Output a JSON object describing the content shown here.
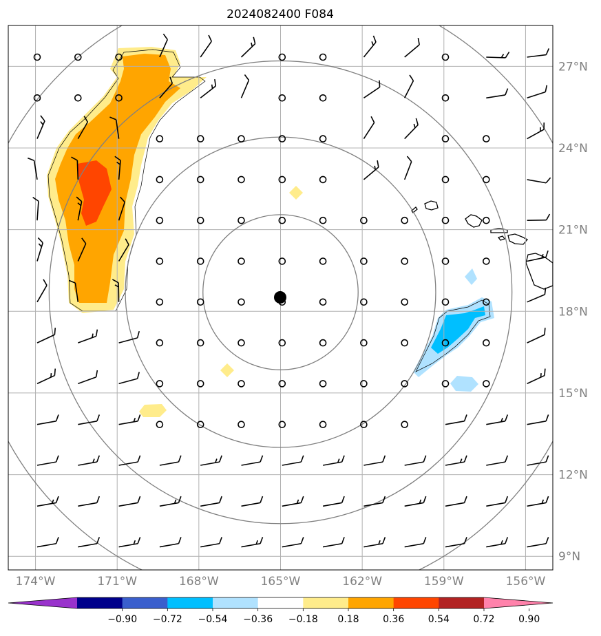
{
  "title": "2024082400 F084",
  "map": {
    "lon_range": [
      -175,
      -155
    ],
    "lat_range": [
      8.5,
      28.5
    ],
    "meridians": [
      {
        "lon": -174,
        "label": "174°W"
      },
      {
        "lon": -171,
        "label": "171°W"
      },
      {
        "lon": -168,
        "label": "168°W"
      },
      {
        "lon": -165,
        "label": "165°W"
      },
      {
        "lon": -162,
        "label": "162°W"
      },
      {
        "lon": -159,
        "label": "159°W"
      },
      {
        "lon": -156,
        "label": "156°W"
      }
    ],
    "parallels": [
      {
        "lat": 9,
        "label": "9°N"
      },
      {
        "lat": 12,
        "label": "12°N"
      },
      {
        "lat": 15,
        "label": "15°N"
      },
      {
        "lat": 18,
        "label": "18°N"
      },
      {
        "lat": 21,
        "label": "21°N"
      },
      {
        "lat": 24,
        "label": "24°N"
      },
      {
        "lat": 27,
        "label": "27°N"
      }
    ],
    "grid_color": "#b0b0b0",
    "center": {
      "lon": -165,
      "lat": 18.7
    },
    "range_rings_deg": [
      2.85,
      5.7,
      8.5,
      11.4
    ],
    "ring_color": "#808080"
  },
  "colorbar": {
    "colors": [
      "#9932cc",
      "#00008b",
      "#3a5fcd",
      "#00bfff",
      "#b0e2ff",
      "#ffffff",
      "#ffec8b",
      "#ffa500",
      "#ff4500",
      "#b22222",
      "#ff82ab"
    ],
    "ticks": [
      "−0.90",
      "−0.72",
      "−0.54",
      "−0.36",
      "−0.18",
      "0.18",
      "0.36",
      "0.54",
      "0.72",
      "0.90"
    ]
  }
}
